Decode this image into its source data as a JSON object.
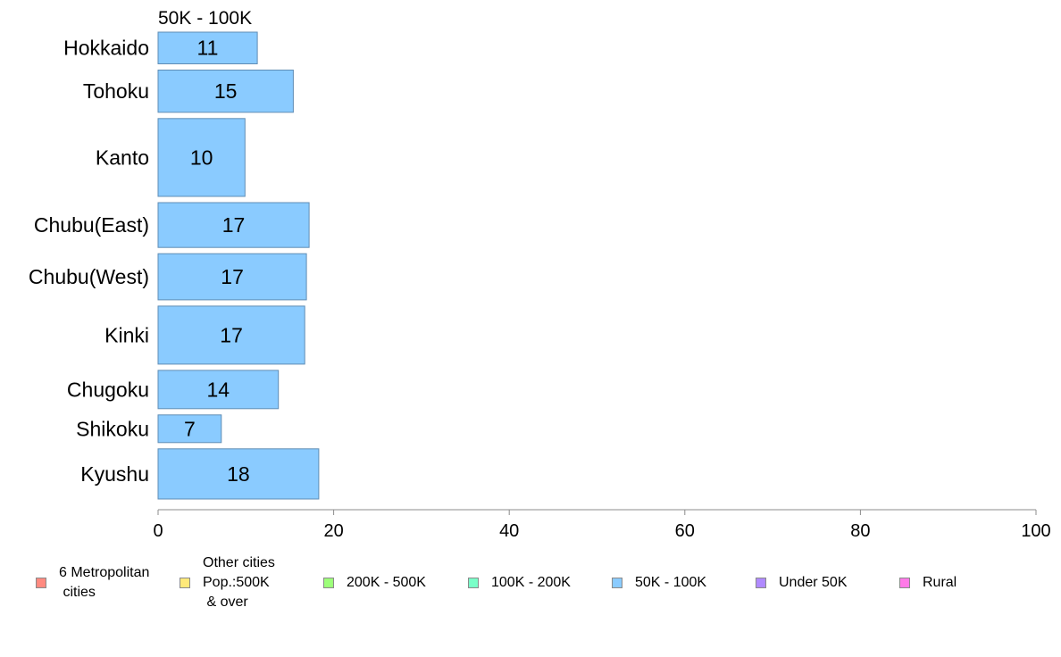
{
  "chart_data": {
    "type": "bar",
    "orientation": "horizontal",
    "title": "50K - 100K",
    "categories": [
      "Hokkaido",
      "Tohoku",
      "Kanto",
      "Chubu(East)",
      "Chubu(West)",
      "Kinki",
      "Chugoku",
      "Shikoku",
      "Kyushu"
    ],
    "values": [
      11.3,
      15.4,
      9.9,
      17.2,
      16.9,
      16.7,
      13.7,
      7.2,
      18.3
    ],
    "data_labels": [
      "11",
      "15",
      "10",
      "17",
      "17",
      "17",
      "14",
      "7",
      "18"
    ],
    "bar_weights": [
      1.2,
      1.6,
      2.95,
      1.7,
      1.75,
      2.2,
      1.45,
      1.05,
      1.9
    ],
    "xlim": [
      0,
      100
    ],
    "x_ticks": [
      "0",
      "20",
      "40",
      "60",
      "80",
      "100"
    ],
    "grid": false,
    "bar_color": "#8acbff",
    "legend_placement": "bottom",
    "legend": [
      {
        "label": "6 Metropolitan\n cities",
        "color": "#ff8a80"
      },
      {
        "label": "Other cities\nPop.:500K\n & over",
        "color": "#ffe97a"
      },
      {
        "label": "200K - 500K",
        "color": "#9dff7a"
      },
      {
        "label": "100K - 200K",
        "color": "#7affc8"
      },
      {
        "label": "50K - 100K",
        "color": "#8acbff"
      },
      {
        "label": "Under 50K",
        "color": "#b08aff"
      },
      {
        "label": "Rural",
        "color": "#ff7ae8"
      }
    ]
  }
}
